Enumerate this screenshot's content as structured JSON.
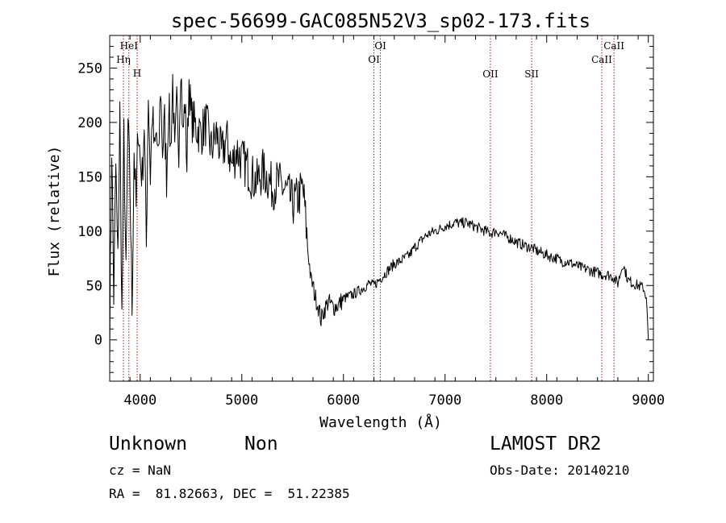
{
  "chart_data": {
    "type": "line",
    "title": "spec-56699-GAC085N52V3_sp02-173.fits",
    "xlabel": "Wavelength (Å)",
    "ylabel": "Flux (relative)",
    "xlim": [
      3700,
      9050
    ],
    "ylim": [
      -38,
      280
    ],
    "xticks": [
      4000,
      5000,
      6000,
      7000,
      8000,
      9000
    ],
    "yticks": [
      0,
      50,
      100,
      150,
      200,
      250
    ],
    "grid": false,
    "legend": "none",
    "line_color": "#000000",
    "marker_color": "#aa1111",
    "series": [
      {
        "x": [
          3700,
          3720,
          3740,
          3760,
          3780,
          3800,
          3820,
          3840,
          3860,
          3880,
          3900,
          3920,
          3940,
          3960,
          3980,
          4000,
          4020,
          4040,
          4060,
          4080,
          4100,
          4120,
          4140,
          4160,
          4180,
          4200,
          4220,
          4240,
          4260,
          4280,
          4300,
          4320,
          4340,
          4360,
          4380,
          4400,
          4420,
          4440,
          4460,
          4480,
          4500,
          4550,
          4600,
          4650,
          4700,
          4750,
          4800,
          4850,
          4900,
          4950,
          5000,
          5050,
          5100,
          5150,
          5200,
          5250,
          5300,
          5350,
          5400,
          5450,
          5500,
          5550,
          5600,
          5620,
          5640,
          5660,
          5680,
          5700,
          5720,
          5740,
          5760,
          5780,
          5800,
          5850,
          5900,
          5950,
          6000,
          6050,
          6100,
          6150,
          6200,
          6250,
          6300,
          6350,
          6400,
          6450,
          6500,
          6550,
          6600,
          6650,
          6700,
          6750,
          6800,
          6850,
          6900,
          6950,
          7000,
          7050,
          7100,
          7150,
          7200,
          7250,
          7300,
          7350,
          7400,
          7450,
          7500,
          7550,
          7600,
          7650,
          7700,
          7750,
          7800,
          7850,
          7900,
          7950,
          8000,
          8050,
          8100,
          8150,
          8200,
          8250,
          8300,
          8350,
          8400,
          8450,
          8500,
          8550,
          8600,
          8650,
          8700,
          8750,
          8800,
          8850,
          8900,
          8950,
          8980,
          9000
        ],
        "y": [
          0,
          180,
          40,
          160,
          70,
          210,
          20,
          190,
          55,
          200,
          140,
          30,
          175,
          120,
          200,
          165,
          150,
          200,
          85,
          230,
          150,
          210,
          170,
          190,
          160,
          235,
          175,
          200,
          150,
          220,
          175,
          240,
          165,
          215,
          180,
          260,
          185,
          220,
          160,
          240,
          205,
          195,
          190,
          200,
          175,
          190,
          170,
          185,
          160,
          175,
          165,
          160,
          150,
          145,
          155,
          150,
          140,
          145,
          140,
          135,
          125,
          130,
          140,
          120,
          95,
          75,
          55,
          50,
          40,
          35,
          28,
          18,
          25,
          35,
          30,
          32,
          38,
          40,
          42,
          45,
          48,
          52,
          50,
          55,
          60,
          65,
          70,
          72,
          75,
          78,
          85,
          90,
          95,
          98,
          100,
          102,
          105,
          106,
          108,
          107,
          108,
          106,
          104,
          102,
          100,
          98,
          100,
          98,
          95,
          93,
          90,
          88,
          86,
          85,
          82,
          80,
          78,
          76,
          75,
          72,
          72,
          70,
          68,
          66,
          65,
          63,
          62,
          60,
          60,
          58,
          52,
          70,
          55,
          52,
          50,
          48,
          40,
          0
        ]
      }
    ],
    "line_markers": [
      {
        "label": "HeI",
        "x": 3889,
        "row": "top"
      },
      {
        "label": "Hη",
        "x": 3835,
        "row": "middle"
      },
      {
        "label": "H",
        "x": 3970,
        "row": "lower"
      },
      {
        "label": "OI",
        "x": 6364,
        "row": "top"
      },
      {
        "label": "OI",
        "x": 6300,
        "row": "middle"
      },
      {
        "label": "OII",
        "x": 7446,
        "row": "bottom"
      },
      {
        "label": "SII",
        "x": 7852,
        "row": "bottom"
      },
      {
        "label": "CaII",
        "x": 8662,
        "row": "top"
      },
      {
        "label": "CaII",
        "x": 8542,
        "row": "middle"
      }
    ]
  },
  "footer": {
    "object_type": "Unknown",
    "object_class": "Non",
    "survey": "LAMOST DR2",
    "redshift": "cz = NaN",
    "obs_date": "Obs-Date: 20140210",
    "coordinates": "RA =  81.82663, DEC =  51.22385"
  }
}
